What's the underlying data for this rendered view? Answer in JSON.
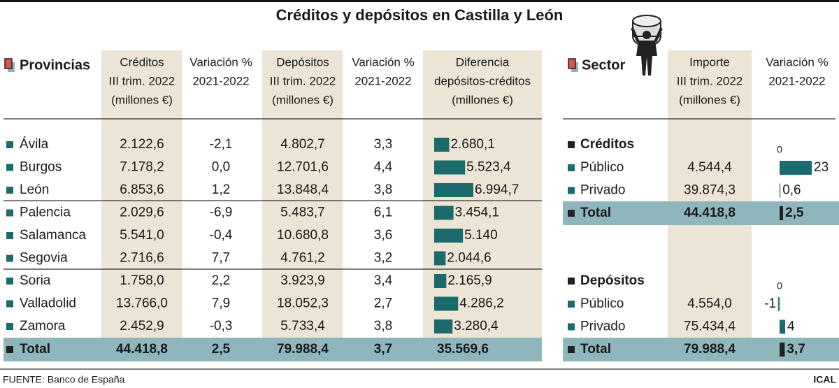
{
  "title": "Créditos y depósitos en Castilla y León",
  "provincias": {
    "heading": "Provincias",
    "columns": [
      [
        "Créditos",
        "III trim. 2022",
        "(millones €)"
      ],
      [
        "Variación %",
        "2021-2022"
      ],
      [
        "Depósitos",
        "III trim. 2022",
        "(millones €)"
      ],
      [
        "Variación %",
        "2021-2022"
      ],
      [
        "Diferencia",
        "depósitos-créditos",
        "(millones €)"
      ]
    ],
    "rows": [
      {
        "name": "Ávila",
        "creditos": "2.122,6",
        "var_creditos": "-2,1",
        "depositos": "4.802,7",
        "var_depositos": "3,3",
        "diferencia": {
          "value": 2680.1,
          "label": "2.680,1"
        }
      },
      {
        "name": "Burgos",
        "creditos": "7.178,2",
        "var_creditos": "0,0",
        "depositos": "12.701,6",
        "var_depositos": "4,4",
        "diferencia": {
          "value": 5523.4,
          "label": "5.523,4"
        }
      },
      {
        "name": "León",
        "creditos": "6.853,6",
        "var_creditos": "1,2",
        "depositos": "13.848,4",
        "var_depositos": "3,8",
        "diferencia": {
          "value": 6994.7,
          "label": "6.994,7"
        }
      },
      {
        "name": "Palencia",
        "creditos": "2.029,6",
        "var_creditos": "-6,9",
        "depositos": "5.483,7",
        "var_depositos": "6,1",
        "diferencia": {
          "value": 3454.1,
          "label": "3.454,1"
        }
      },
      {
        "name": "Salamanca",
        "creditos": "5.541,0",
        "var_creditos": "-0,4",
        "depositos": "10.680,8",
        "var_depositos": "3,6",
        "diferencia": {
          "value": 5140,
          "label": "5.140"
        }
      },
      {
        "name": "Segovia",
        "creditos": "2.716,6",
        "var_creditos": "7,7",
        "depositos": "4.761,2",
        "var_depositos": "3,2",
        "diferencia": {
          "value": 2044.6,
          "label": "2.044,6"
        }
      },
      {
        "name": "Soria",
        "creditos": "1.758,0",
        "var_creditos": "2,2",
        "depositos": "3.923,9",
        "var_depositos": "3,4",
        "diferencia": {
          "value": 2165.9,
          "label": "2.165,9"
        }
      },
      {
        "name": "Valladolid",
        "creditos": "13.766,0",
        "var_creditos": "7,9",
        "depositos": "18.052,3",
        "var_depositos": "2,7",
        "diferencia": {
          "value": 4286.2,
          "label": "4.286,2"
        }
      },
      {
        "name": "Zamora",
        "creditos": "2.452,9",
        "var_creditos": "-0,3",
        "depositos": "5.733,4",
        "var_depositos": "3,8",
        "diferencia": {
          "value": 3280.4,
          "label": "3.280,4"
        }
      }
    ],
    "total": {
      "name": "Total",
      "creditos": "44.418,8",
      "var_creditos": "2,5",
      "depositos": "79.988,4",
      "var_depositos": "3,7",
      "diferencia": "35.569,6"
    }
  },
  "sector": {
    "heading": "Sector",
    "columns": [
      [
        "Importe",
        "III trim. 2022",
        "(millones €)"
      ],
      [
        "Variación %",
        "2021-2022"
      ]
    ],
    "groups": [
      {
        "name": "Créditos",
        "zero": "0",
        "rows": [
          {
            "name": "Público",
            "importe": "4.544,4",
            "variacion": {
              "value": 23,
              "label": "23"
            }
          },
          {
            "name": "Privado",
            "importe": "39.874,3",
            "variacion": {
              "value": 0.6,
              "label": "0,6"
            }
          }
        ],
        "total": {
          "name": "Total",
          "importe": "44.418,8",
          "variacion": {
            "value": 2.5,
            "label": "2,5"
          }
        }
      },
      {
        "name": "Depósitos",
        "zero": "0",
        "rows": [
          {
            "name": "Público",
            "importe": "4.554,0",
            "variacion": {
              "value": -1,
              "label": "-1"
            }
          },
          {
            "name": "Privado",
            "importe": "75.434,4",
            "variacion": {
              "value": 4,
              "label": "4"
            }
          }
        ],
        "total": {
          "name": "Total",
          "importe": "79.988,4",
          "variacion": {
            "value": 3.7,
            "label": "3,7"
          }
        }
      }
    ]
  },
  "source": "FUENTE: Banco de España",
  "brand": "ICAL"
}
